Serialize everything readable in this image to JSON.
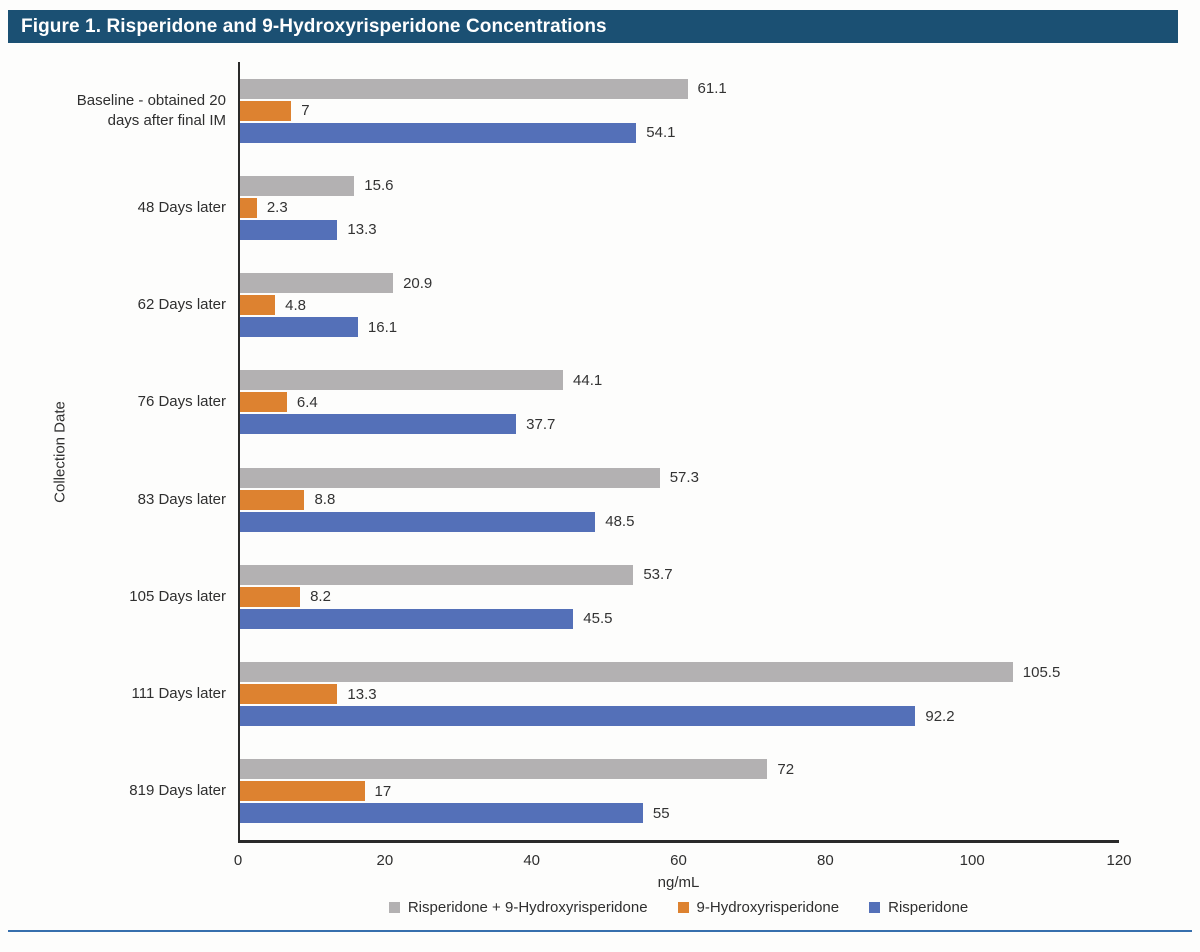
{
  "figure": {
    "title": "Figure 1. Risperidone and 9-Hydroxyrisperidone Concentrations"
  },
  "chart_data": {
    "type": "bar",
    "orientation": "horizontal",
    "title": "Figure 1. Risperidone and 9-Hydroxyrisperidone Concentrations",
    "ylabel": "Collection Date",
    "xlabel": "ng/mL",
    "xlim": [
      0,
      120
    ],
    "xticks": [
      0,
      20,
      40,
      60,
      80,
      100,
      120
    ],
    "grid": false,
    "legend_position": "bottom",
    "categories": [
      "Baseline - obtained 20\ndays after final IM",
      "48 Days later",
      "62 Days later",
      "76 Days later",
      "83 Days later",
      "105 Days later",
      "111 Days later",
      "819 Days later"
    ],
    "series": [
      {
        "name": "Risperidone + 9-Hydroxyrisperidone",
        "color": "#b3b1b2",
        "values": [
          61.1,
          15.6,
          20.9,
          44.1,
          57.3,
          53.7,
          105.5,
          72
        ]
      },
      {
        "name": "9-Hydroxyrisperidone",
        "color": "#dd8230",
        "values": [
          7,
          2.3,
          4.8,
          6.4,
          8.8,
          8.2,
          13.3,
          17
        ]
      },
      {
        "name": "Risperidone",
        "color": "#5470b8",
        "values": [
          54.1,
          13.3,
          16.1,
          37.7,
          48.5,
          45.5,
          92.2,
          55
        ]
      }
    ]
  },
  "colors": {
    "title_bar_bg": "#1b5073",
    "footer_rule": "#376fad",
    "axis": "#2a2a2a"
  }
}
